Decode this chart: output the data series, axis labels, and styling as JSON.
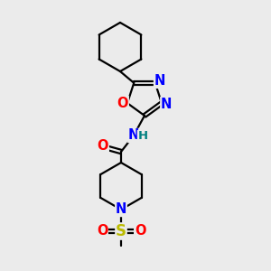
{
  "bg_color": "#ebebeb",
  "bond_color": "#000000",
  "bond_width": 1.6,
  "atom_colors": {
    "N": "#0000ff",
    "O": "#ff0000",
    "S": "#bbbb00",
    "H": "#008080",
    "C": "#000000"
  },
  "font_size": 10.5,
  "fig_size": [
    3.0,
    3.0
  ],
  "dpi": 100
}
